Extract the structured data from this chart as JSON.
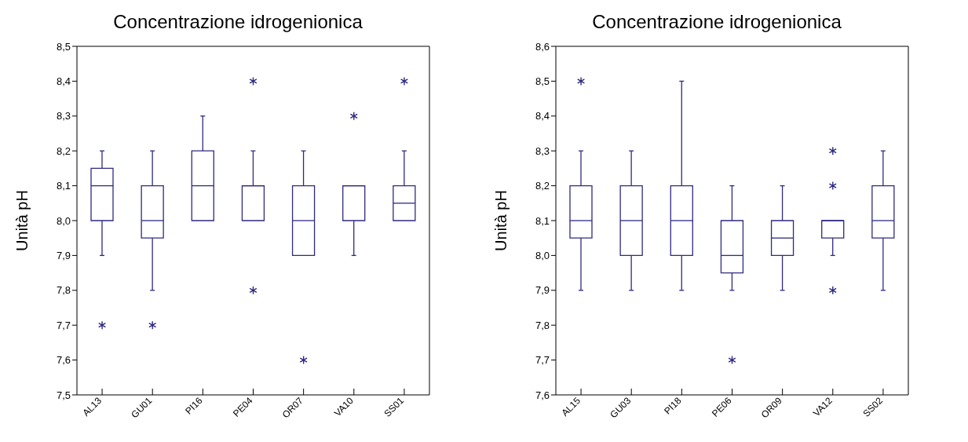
{
  "chart_data": [
    {
      "type": "box",
      "title": "Concentrazione idrogenionica",
      "ylabel": "Unità pH",
      "categories": [
        "AL13",
        "GU01",
        "PI16",
        "PE04",
        "OR07",
        "VA10",
        "SS01"
      ],
      "color": "#2e2a80",
      "ylim": [
        7.5,
        8.5
      ],
      "yticks": [
        {
          "value": 7.5,
          "label": "7,5"
        },
        {
          "value": 7.6,
          "label": "7,6"
        },
        {
          "value": 7.7,
          "label": "7,7"
        },
        {
          "value": 7.8,
          "label": "7,8"
        },
        {
          "value": 7.9,
          "label": "7,9"
        },
        {
          "value": 8.0,
          "label": "8,0"
        },
        {
          "value": 8.1,
          "label": "8,1"
        },
        {
          "value": 8.2,
          "label": "8,2"
        },
        {
          "value": 8.3,
          "label": "8,3"
        },
        {
          "value": 8.4,
          "label": "8,4"
        },
        {
          "value": 8.5,
          "label": "8,5"
        }
      ],
      "boxes": [
        {
          "low": 7.9,
          "q1": 8.0,
          "median": 8.1,
          "q3": 8.15,
          "high": 8.2,
          "outliers": [
            7.7
          ]
        },
        {
          "low": 7.8,
          "q1": 7.95,
          "median": 8.0,
          "q3": 8.1,
          "high": 8.2,
          "outliers": [
            7.7
          ]
        },
        {
          "low": 8.0,
          "q1": 8.0,
          "median": 8.1,
          "q3": 8.2,
          "high": 8.3
        },
        {
          "low": 8.0,
          "q1": 8.0,
          "median": 8.1,
          "q3": 8.1,
          "high": 8.2,
          "outliers": [
            7.8,
            8.4
          ]
        },
        {
          "low": 7.9,
          "q1": 7.9,
          "median": 8.0,
          "q3": 8.1,
          "high": 8.2,
          "outliers": [
            7.6
          ]
        },
        {
          "low": 7.9,
          "q1": 8.0,
          "median": 8.1,
          "q3": 8.1,
          "high": 8.1,
          "outliers": [
            8.3
          ]
        },
        {
          "low": 8.0,
          "q1": 8.0,
          "median": 8.05,
          "q3": 8.1,
          "high": 8.2,
          "outliers": [
            8.4
          ]
        }
      ]
    },
    {
      "type": "box",
      "title": "Concentrazione idrogenionica",
      "ylabel": "Unità pH",
      "categories": [
        "AL15",
        "GU03",
        "PI18",
        "PE06",
        "OR09",
        "VA12",
        "SS02"
      ],
      "color": "#2e2a80",
      "ylim": [
        7.6,
        8.6
      ],
      "yticks": [
        {
          "value": 7.6,
          "label": "7,6"
        },
        {
          "value": 7.7,
          "label": "7,7"
        },
        {
          "value": 7.8,
          "label": "7,8"
        },
        {
          "value": 7.9,
          "label": "7,9"
        },
        {
          "value": 8.0,
          "label": "8,0"
        },
        {
          "value": 8.1,
          "label": "8,1"
        },
        {
          "value": 8.2,
          "label": "8,2"
        },
        {
          "value": 8.3,
          "label": "8,3"
        },
        {
          "value": 8.4,
          "label": "8,4"
        },
        {
          "value": 8.5,
          "label": "8,5"
        },
        {
          "value": 8.6,
          "label": "8,6"
        }
      ],
      "boxes": [
        {
          "low": 7.9,
          "q1": 8.05,
          "median": 8.1,
          "q3": 8.2,
          "high": 8.3,
          "outliers": [
            8.5
          ]
        },
        {
          "low": 7.9,
          "q1": 8.0,
          "median": 8.1,
          "q3": 8.2,
          "high": 8.3
        },
        {
          "low": 7.9,
          "q1": 8.0,
          "median": 8.1,
          "q3": 8.2,
          "high": 8.5
        },
        {
          "low": 7.9,
          "q1": 7.95,
          "median": 8.0,
          "q3": 8.1,
          "high": 8.2,
          "outliers": [
            7.7
          ]
        },
        {
          "low": 7.9,
          "q1": 8.0,
          "median": 8.05,
          "q3": 8.1,
          "high": 8.2
        },
        {
          "low": 8.0,
          "q1": 8.05,
          "median": 8.1,
          "q3": 8.1,
          "high": 8.1,
          "outliers": [
            7.9,
            8.2,
            8.3
          ]
        },
        {
          "low": 7.9,
          "q1": 8.05,
          "median": 8.1,
          "q3": 8.2,
          "high": 8.3
        }
      ]
    }
  ]
}
